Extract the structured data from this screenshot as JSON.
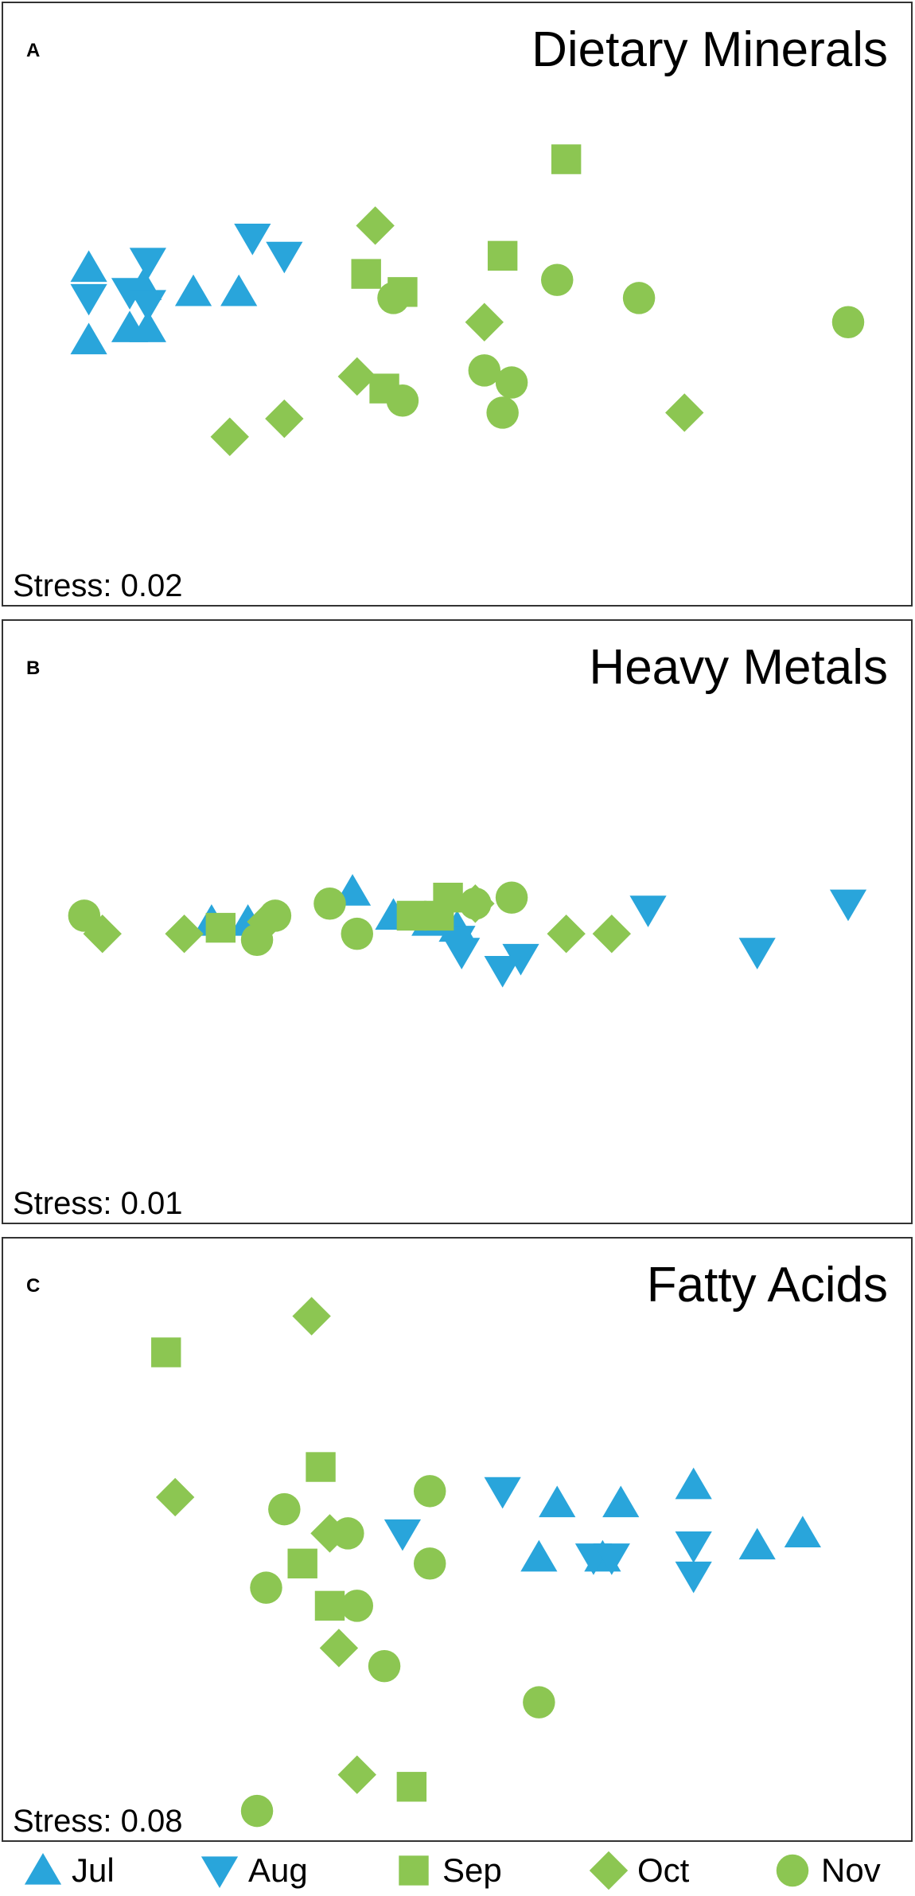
{
  "colors": {
    "Jul": "#29a5db",
    "Aug": "#29a5db",
    "Sep": "#8cc652",
    "Oct": "#8cc652",
    "Nov": "#8cc652",
    "frame": "#333333"
  },
  "legend": [
    {
      "key": "Jul",
      "label": "Jul",
      "shape": "triangle-up"
    },
    {
      "key": "Aug",
      "label": "Aug",
      "shape": "triangle-down"
    },
    {
      "key": "Sep",
      "label": "Sep",
      "shape": "square"
    },
    {
      "key": "Oct",
      "label": "Oct",
      "shape": "diamond"
    },
    {
      "key": "Nov",
      "label": "Nov",
      "shape": "circle"
    }
  ],
  "chart_data": [
    {
      "type": "scatter",
      "panel": "A",
      "title": "Dietary Minerals",
      "stress": "Stress: 0.02",
      "xlim": [
        0,
        1
      ],
      "ylim": [
        0,
        1
      ],
      "grid": false,
      "series": [
        {
          "name": "Jul",
          "points": [
            [
              0.14,
              0.46
            ],
            [
              0.095,
              0.56
            ],
            [
              0.095,
              0.44
            ],
            [
              0.16,
              0.46
            ],
            [
              0.21,
              0.52
            ],
            [
              0.155,
              0.53
            ],
            [
              0.26,
              0.52
            ]
          ]
        },
        {
          "name": "Aug",
          "points": [
            [
              0.095,
              0.51
            ],
            [
              0.16,
              0.57
            ],
            [
              0.14,
              0.52
            ],
            [
              0.275,
              0.61
            ],
            [
              0.31,
              0.58
            ],
            [
              0.16,
              0.5
            ]
          ]
        },
        {
          "name": "Sep",
          "points": [
            [
              0.62,
              0.74
            ],
            [
              0.55,
              0.58
            ],
            [
              0.4,
              0.55
            ],
            [
              0.44,
              0.52
            ],
            [
              0.42,
              0.36
            ]
          ]
        },
        {
          "name": "Oct",
          "points": [
            [
              0.41,
              0.63
            ],
            [
              0.53,
              0.47
            ],
            [
              0.39,
              0.38
            ],
            [
              0.31,
              0.31
            ],
            [
              0.25,
              0.28
            ],
            [
              0.75,
              0.32
            ]
          ]
        },
        {
          "name": "Nov",
          "points": [
            [
              0.61,
              0.54
            ],
            [
              0.7,
              0.51
            ],
            [
              0.93,
              0.47
            ],
            [
              0.43,
              0.51
            ],
            [
              0.53,
              0.39
            ],
            [
              0.56,
              0.37
            ],
            [
              0.55,
              0.32
            ],
            [
              0.44,
              0.34
            ]
          ]
        }
      ]
    },
    {
      "type": "scatter",
      "panel": "B",
      "title": "Heavy Metals",
      "stress": "Stress: 0.01",
      "xlim": [
        0,
        1
      ],
      "ylim": [
        0,
        1
      ],
      "grid": false,
      "series": [
        {
          "name": "Jul",
          "points": [
            [
              0.23,
              0.5
            ],
            [
              0.27,
              0.5
            ],
            [
              0.385,
              0.55
            ],
            [
              0.43,
              0.51
            ],
            [
              0.47,
              0.5
            ],
            [
              0.5,
              0.49
            ]
          ]
        },
        {
          "name": "Aug",
          "points": [
            [
              0.5,
              0.47
            ],
            [
              0.505,
              0.45
            ],
            [
              0.57,
              0.44
            ],
            [
              0.55,
              0.42
            ],
            [
              0.71,
              0.52
            ],
            [
              0.83,
              0.45
            ],
            [
              0.93,
              0.53
            ]
          ]
        },
        {
          "name": "Sep",
          "points": [
            [
              0.24,
              0.49
            ],
            [
              0.48,
              0.51
            ],
            [
              0.45,
              0.51
            ],
            [
              0.49,
              0.54
            ]
          ]
        },
        {
          "name": "Oct",
          "points": [
            [
              0.11,
              0.48
            ],
            [
              0.2,
              0.48
            ],
            [
              0.29,
              0.5
            ],
            [
              0.52,
              0.53
            ],
            [
              0.62,
              0.48
            ],
            [
              0.67,
              0.48
            ]
          ]
        },
        {
          "name": "Nov",
          "points": [
            [
              0.09,
              0.51
            ],
            [
              0.28,
              0.47
            ],
            [
              0.3,
              0.51
            ],
            [
              0.36,
              0.53
            ],
            [
              0.39,
              0.48
            ],
            [
              0.52,
              0.53
            ],
            [
              0.56,
              0.54
            ]
          ]
        }
      ]
    },
    {
      "type": "scatter",
      "panel": "C",
      "title": "Fatty Acids",
      "stress": "Stress: 0.08",
      "xlim": [
        0,
        1
      ],
      "ylim": [
        0,
        1
      ],
      "grid": false,
      "series": [
        {
          "name": "Jul",
          "points": [
            [
              0.61,
              0.56
            ],
            [
              0.68,
              0.56
            ],
            [
              0.76,
              0.59
            ],
            [
              0.88,
              0.51
            ],
            [
              0.83,
              0.49
            ],
            [
              0.59,
              0.47
            ],
            [
              0.66,
              0.47
            ]
          ]
        },
        {
          "name": "Aug",
          "points": [
            [
              0.55,
              0.58
            ],
            [
              0.44,
              0.51
            ],
            [
              0.76,
              0.49
            ],
            [
              0.65,
              0.47
            ],
            [
              0.67,
              0.47
            ],
            [
              0.76,
              0.44
            ]
          ]
        },
        {
          "name": "Sep",
          "points": [
            [
              0.18,
              0.81
            ],
            [
              0.35,
              0.62
            ],
            [
              0.33,
              0.46
            ],
            [
              0.36,
              0.39
            ],
            [
              0.45,
              0.09
            ]
          ]
        },
        {
          "name": "Oct",
          "points": [
            [
              0.34,
              0.87
            ],
            [
              0.19,
              0.57
            ],
            [
              0.36,
              0.51
            ],
            [
              0.37,
              0.32
            ],
            [
              0.39,
              0.11
            ]
          ]
        },
        {
          "name": "Nov",
          "points": [
            [
              0.47,
              0.58
            ],
            [
              0.31,
              0.55
            ],
            [
              0.38,
              0.51
            ],
            [
              0.47,
              0.46
            ],
            [
              0.29,
              0.42
            ],
            [
              0.39,
              0.39
            ],
            [
              0.42,
              0.29
            ],
            [
              0.59,
              0.23
            ],
            [
              0.28,
              0.05
            ]
          ]
        }
      ]
    }
  ]
}
